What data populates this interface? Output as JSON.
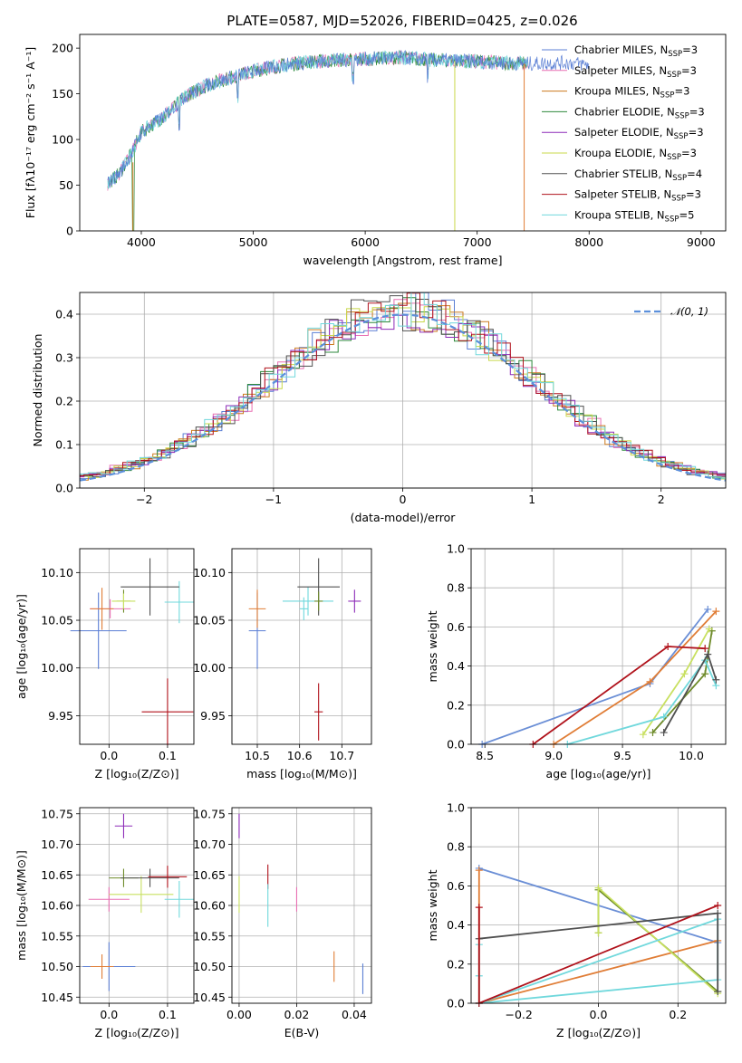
{
  "colors": {
    "cm": "#5b7fd4",
    "sm": "#e86fb2",
    "km": "#cc7a1e",
    "ce": "#2e8a3c",
    "se": "#8d2cb8",
    "ke": "#c8d84a",
    "cs": "#505050",
    "ss": "#b0121b",
    "ks": "#70d8dc",
    "mi": "#6b8fd6",
    "or": "#e07d36",
    "ol": "#6e8b2a",
    "ye": "#c8e060"
  },
  "p1": {
    "type": "line",
    "title": "PLATE=0587, MJD=52026, FIBERID=0425, z=0.026",
    "xlabel": "wavelength [Angstrom, rest frame]",
    "ylabel": "Flux [fλ10⁻¹⁷ erg cm⁻² s⁻¹ A⁻¹]",
    "xlim": [
      3450,
      9220
    ],
    "ylim": [
      0,
      215
    ],
    "xticks": [
      "4000",
      "5000",
      "6000",
      "7000",
      "8000",
      "9000"
    ],
    "yticks": [
      "0",
      "50",
      "100",
      "150",
      "200"
    ],
    "envelope": [
      [
        3700,
        52
      ],
      [
        3800,
        62
      ],
      [
        3900,
        82
      ],
      [
        4000,
        108
      ],
      [
        4200,
        125
      ],
      [
        4400,
        148
      ],
      [
        4600,
        160
      ],
      [
        4800,
        168
      ],
      [
        5000,
        175
      ],
      [
        5200,
        180
      ],
      [
        5500,
        185
      ],
      [
        5800,
        187
      ],
      [
        6000,
        188
      ],
      [
        6300,
        190
      ],
      [
        6600,
        187
      ],
      [
        6900,
        186
      ],
      [
        7200,
        184
      ],
      [
        7500,
        183
      ],
      [
        7800,
        184
      ],
      [
        8000,
        182
      ]
    ],
    "legend": [
      {
        "name": "Chabrier MILES, N",
        "sub": "SSP",
        "tail": "=3",
        "c": "cm"
      },
      {
        "name": "Salpeter MILES, N",
        "sub": "SSP",
        "tail": "=3",
        "c": "sm"
      },
      {
        "name": "Kroupa MILES, N",
        "sub": "SSP",
        "tail": "=3",
        "c": "km"
      },
      {
        "name": "Chabrier ELODIE, N",
        "sub": "SSP",
        "tail": "=3",
        "c": "ce"
      },
      {
        "name": "Salpeter ELODIE, N",
        "sub": "SSP",
        "tail": "=3",
        "c": "se"
      },
      {
        "name": "Kroupa ELODIE, N",
        "sub": "SSP",
        "tail": "=3",
        "c": "ke"
      },
      {
        "name": "Chabrier STELIB, N",
        "sub": "SSP",
        "tail": "=4",
        "c": "cs"
      },
      {
        "name": "Salpeter STELIB, N",
        "sub": "SSP",
        "tail": "=3",
        "c": "ss"
      },
      {
        "name": "Kroupa STELIB, N",
        "sub": "SSP",
        "tail": "=5",
        "c": "ks"
      }
    ]
  },
  "p2": {
    "type": "histogram",
    "xlabel": "(data-model)/error",
    "ylabel": "Normed distribution",
    "xlim": [
      -2.5,
      2.5
    ],
    "ylim": [
      0,
      0.45
    ],
    "xticks": [
      "−2",
      "−1",
      "0",
      "1",
      "2"
    ],
    "yticks": [
      "0.0",
      "0.1",
      "0.2",
      "0.3",
      "0.4"
    ],
    "legend": "𝒩(0, 1)"
  },
  "p3": {
    "type": "scatter",
    "xlabel": "Z [log₁₀(Z/Z⊙)]",
    "ylabel": "age  [log₁₀(age/yr)]",
    "xlim": [
      -0.05,
      0.145
    ],
    "ylim": [
      9.92,
      10.125
    ],
    "xticks": [
      "0.0",
      "0.1"
    ],
    "yticks": [
      "9.95",
      "10.00",
      "10.05",
      "10.10"
    ],
    "points": [
      {
        "x": -0.018,
        "y": 10.039,
        "ex": 0.048,
        "ey": 0.04,
        "c": "cm"
      },
      {
        "x": 0.002,
        "y": 10.062,
        "ex": 0.035,
        "ey": 0.01,
        "c": "sm"
      },
      {
        "x": -0.012,
        "y": 10.062,
        "ex": 0.02,
        "ey": 0.022,
        "c": "or"
      },
      {
        "x": 0.025,
        "y": 10.07,
        "ex": 0.012,
        "ey": 0.012,
        "c": "ol"
      },
      {
        "x": 0.12,
        "y": 10.069,
        "ex": 0.025,
        "ey": 0.022,
        "c": "ks"
      },
      {
        "x": 0.07,
        "y": 10.085,
        "ex": 0.05,
        "ey": 0.03,
        "c": "cs"
      },
      {
        "x": 0.1,
        "y": 9.954,
        "ex": 0.044,
        "ey": 0.035,
        "c": "ss"
      },
      {
        "x": 0.025,
        "y": 10.07,
        "ex": 0.02,
        "ey": 0.008,
        "c": "ye"
      }
    ]
  },
  "p4": {
    "type": "scatter",
    "xlabel": "mass [log₁₀(M/M⊙)]",
    "ylabel": "",
    "xlim": [
      10.44,
      10.77
    ],
    "ylim": [
      9.92,
      10.125
    ],
    "xticks": [
      "10.5",
      "10.6",
      "10.7"
    ],
    "yticks": [
      "9.95",
      "10.00",
      "10.05",
      "10.10"
    ],
    "points": [
      {
        "x": 10.5,
        "y": 10.039,
        "ex": 0.02,
        "ey": 0.04,
        "c": "cm"
      },
      {
        "x": 10.5,
        "y": 10.062,
        "ex": 0.02,
        "ey": 0.02,
        "c": "or"
      },
      {
        "x": 10.61,
        "y": 10.062,
        "ex": 0.01,
        "ey": 0.012,
        "c": "ks"
      },
      {
        "x": 10.62,
        "y": 10.07,
        "ex": 0.06,
        "ey": 0.015,
        "c": "ks"
      },
      {
        "x": 10.645,
        "y": 10.085,
        "ex": 0.05,
        "ey": 0.03,
        "c": "cs"
      },
      {
        "x": 10.645,
        "y": 10.07,
        "ex": 0.01,
        "ey": 0.01,
        "c": "ol"
      },
      {
        "x": 10.645,
        "y": 9.954,
        "ex": 0.01,
        "ey": 0.03,
        "c": "ss"
      },
      {
        "x": 10.73,
        "y": 10.07,
        "ex": 0.015,
        "ey": 0.012,
        "c": "se"
      }
    ]
  },
  "p5": {
    "type": "line",
    "xlabel": "age  [log₁₀(age/yr)]",
    "ylabel": "mass weight",
    "xlim": [
      8.4,
      10.25
    ],
    "ylim": [
      0,
      1
    ],
    "xticks": [
      "8.5",
      "9.0",
      "9.5",
      "10.0"
    ],
    "yticks": [
      "0.0",
      "0.2",
      "0.4",
      "0.6",
      "0.8",
      "1.0"
    ],
    "series": [
      {
        "c": "mi",
        "x": [
          8.48,
          9.7,
          10.12
        ],
        "y": [
          0.0,
          0.31,
          0.69
        ]
      },
      {
        "c": "or",
        "x": [
          9.0,
          9.7,
          10.18
        ],
        "y": [
          0.0,
          0.32,
          0.68
        ]
      },
      {
        "c": "ol",
        "x": [
          9.72,
          10.1,
          10.15
        ],
        "y": [
          0.06,
          0.36,
          0.58
        ]
      },
      {
        "c": "ye",
        "x": [
          9.65,
          9.95,
          10.13
        ],
        "y": [
          0.05,
          0.36,
          0.59
        ]
      },
      {
        "c": "ks",
        "x": [
          9.1,
          9.8,
          10.1,
          10.18
        ],
        "y": [
          0.0,
          0.14,
          0.43,
          0.3
        ]
      },
      {
        "c": "cs",
        "x": [
          9.8,
          10.12,
          10.18
        ],
        "y": [
          0.06,
          0.46,
          0.33
        ]
      },
      {
        "c": "ss",
        "x": [
          8.85,
          9.83,
          10.1
        ],
        "y": [
          0.0,
          0.5,
          0.49
        ]
      }
    ]
  },
  "p6": {
    "type": "scatter",
    "xlabel": "Z [log₁₀(Z/Z⊙)]",
    "ylabel": "mass [log₁₀(M/M⊙)]",
    "xlim": [
      -0.05,
      0.145
    ],
    "ylim": [
      10.44,
      10.76
    ],
    "xticks": [
      "0.0",
      "0.1"
    ],
    "yticks": [
      "10.45",
      "10.50",
      "10.55",
      "10.60",
      "10.65",
      "10.70",
      "10.75"
    ],
    "points": [
      {
        "x": 0.0,
        "y": 10.5,
        "ex": 0.045,
        "ey": 0.04,
        "c": "cm"
      },
      {
        "x": -0.012,
        "y": 10.5,
        "ex": 0.02,
        "ey": 0.02,
        "c": "or"
      },
      {
        "x": 0.0,
        "y": 10.61,
        "ex": 0.035,
        "ey": 0.02,
        "c": "sm"
      },
      {
        "x": 0.055,
        "y": 10.618,
        "ex": 0.055,
        "ey": 0.03,
        "c": "ye"
      },
      {
        "x": 0.12,
        "y": 10.61,
        "ex": 0.025,
        "ey": 0.03,
        "c": "ks"
      },
      {
        "x": 0.025,
        "y": 10.645,
        "ex": 0.025,
        "ey": 0.015,
        "c": "ol"
      },
      {
        "x": 0.07,
        "y": 10.645,
        "ex": 0.05,
        "ey": 0.015,
        "c": "cs"
      },
      {
        "x": 0.1,
        "y": 10.647,
        "ex": 0.033,
        "ey": 0.018,
        "c": "ss"
      },
      {
        "x": 0.025,
        "y": 10.73,
        "ex": 0.015,
        "ey": 0.02,
        "c": "se"
      }
    ]
  },
  "p7": {
    "type": "scatter",
    "xlabel": "E(B-V)",
    "ylabel": "",
    "xlim": [
      -0.0025,
      0.046
    ],
    "ylim": [
      10.44,
      10.76
    ],
    "xticks": [
      "0.00",
      "0.02",
      "0.04"
    ],
    "yticks": [
      "10.45",
      "10.50",
      "10.55",
      "10.60",
      "10.65",
      "10.70",
      "10.75"
    ],
    "points": [
      {
        "x": 0.0,
        "y": 10.73,
        "ey": 0.02,
        "c": "se"
      },
      {
        "x": 0.0,
        "y": 10.618,
        "ey": 0.03,
        "c": "ye"
      },
      {
        "x": 0.01,
        "y": 10.647,
        "ey": 0.02,
        "c": "ss"
      },
      {
        "x": 0.01,
        "y": 10.6,
        "ey": 0.035,
        "c": "ks"
      },
      {
        "x": 0.02,
        "y": 10.61,
        "ey": 0.02,
        "c": "sm"
      },
      {
        "x": 0.033,
        "y": 10.5,
        "ey": 0.025,
        "c": "or"
      },
      {
        "x": 0.043,
        "y": 10.48,
        "ey": 0.025,
        "c": "cm"
      }
    ]
  },
  "p8": {
    "type": "line",
    "xlabel": "Z [log₁₀(Z/Z⊙)]",
    "ylabel": "mass weight",
    "xlim": [
      -0.32,
      0.32
    ],
    "ylim": [
      0,
      1
    ],
    "xticks": [
      "−0.2",
      "0.0",
      "0.2"
    ],
    "yticks": [
      "0.0",
      "0.2",
      "0.4",
      "0.6",
      "0.8",
      "1.0"
    ],
    "series": [
      {
        "c": "mi",
        "x": [
          -0.3,
          0.3
        ],
        "y": [
          0.69,
          0.31
        ]
      },
      {
        "c": "or",
        "x": [
          -0.3,
          -0.3,
          0.3
        ],
        "y": [
          0.68,
          0.0,
          0.32
        ]
      },
      {
        "c": "ol",
        "x": [
          0.0,
          0.0,
          0.3,
          0.3
        ],
        "y": [
          0.36,
          0.58,
          0.06,
          0.06
        ]
      },
      {
        "c": "ye",
        "x": [
          0.0,
          0.0,
          0.3
        ],
        "y": [
          0.36,
          0.59,
          0.05
        ]
      },
      {
        "c": "ks",
        "x": [
          -0.3,
          -0.3,
          -0.3,
          0.3,
          0.3,
          -0.3
        ],
        "y": [
          0.3,
          0.14,
          0.0,
          0.43,
          0.12,
          0.0
        ]
      },
      {
        "c": "cs",
        "x": [
          -0.3,
          0.3,
          0.3
        ],
        "y": [
          0.33,
          0.46,
          0.06
        ]
      },
      {
        "c": "ss",
        "x": [
          -0.3,
          -0.3,
          0.3
        ],
        "y": [
          0.49,
          0.0,
          0.5
        ]
      }
    ]
  }
}
